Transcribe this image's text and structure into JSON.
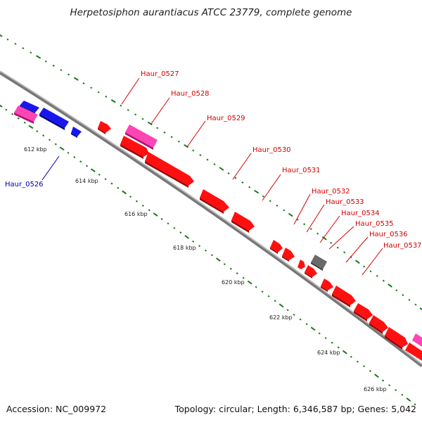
{
  "title": "Herpetosiphon aurantiacus ATCC 23779, complete genome",
  "accession_label": "Accession: NC_009972",
  "topology_label": "Topology: circular; Length: 6,346,587 bp; Genes: 5,042",
  "colors": {
    "backbone": "#8c8c8c",
    "gene_red": "#ff0000",
    "gene_pink": "#ff3fb0",
    "gene_blue": "#1010ee",
    "gene_gray": "#666666",
    "tick": "#1a7a1a",
    "label_red": "#d40000",
    "label_blue": "#0000a0"
  },
  "scale_labels": [
    "612 kbp",
    "614 kbp",
    "616 kbp",
    "618 kbp",
    "620 kbp",
    "622 kbp",
    "624 kbp",
    "626 kbp"
  ],
  "gene_labels": [
    {
      "text": "Haur_0526",
      "color": "blue"
    },
    {
      "text": "Haur_0527",
      "color": "red"
    },
    {
      "text": "Haur_0528",
      "color": "red"
    },
    {
      "text": "Haur_0529",
      "color": "red"
    },
    {
      "text": "Haur_0530",
      "color": "red"
    },
    {
      "text": "Haur_0531",
      "color": "red"
    },
    {
      "text": "Haur_0532",
      "color": "red"
    },
    {
      "text": "Haur_0533",
      "color": "red"
    },
    {
      "text": "Haur_0534",
      "color": "red"
    },
    {
      "text": "Haur_0535",
      "color": "red"
    },
    {
      "text": "Haur_0536",
      "color": "red"
    },
    {
      "text": "Haur_0537",
      "color": "red"
    }
  ]
}
